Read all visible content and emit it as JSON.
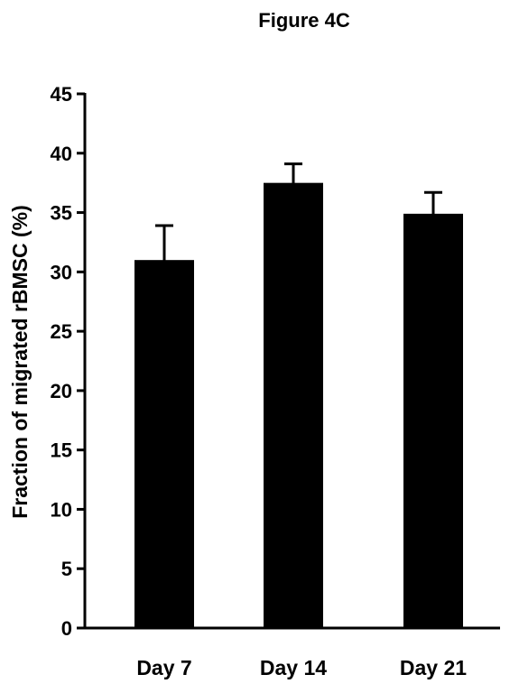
{
  "chart_data": {
    "type": "bar",
    "title": "Figure 4C",
    "xlabel": "",
    "ylabel": "Fraction of migrated rBMSC (%)",
    "categories": [
      "Day 7",
      "Day 14",
      "Day 21"
    ],
    "values": [
      31.0,
      37.5,
      34.9
    ],
    "error_bars_upper": [
      2.9,
      1.6,
      1.8
    ],
    "ylim": [
      0,
      45
    ],
    "yticks": [
      0,
      5,
      10,
      15,
      20,
      25,
      30,
      35,
      40,
      45
    ],
    "ytick_labels": [
      "0",
      "5",
      "10",
      "15",
      "20",
      "25",
      "30",
      "35",
      "40",
      "45"
    ],
    "bar_color": "#000000",
    "grid": false,
    "legend": "none"
  }
}
